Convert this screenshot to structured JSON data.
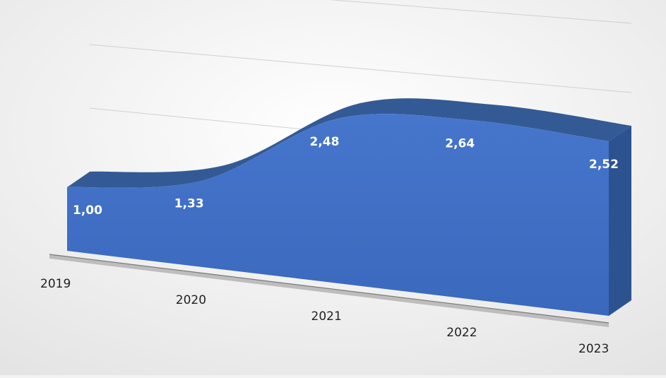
{
  "chart_data": {
    "type": "area",
    "categories": [
      "2019",
      "2020",
      "2021",
      "2022",
      "2023"
    ],
    "values": [
      1.0,
      1.33,
      2.48,
      2.64,
      2.52
    ],
    "value_labels": [
      "1,00",
      "1,33",
      "2,48",
      "2,64",
      "2,52"
    ],
    "title": "",
    "xlabel": "",
    "ylabel": "",
    "ylim": [
      0,
      3
    ],
    "grid": true,
    "legend": "none",
    "three_d": true,
    "colors": {
      "area_front": "#3e6fc7",
      "area_top": "#345a96",
      "area_side": "#2d5290",
      "floor": "#bdbdbd",
      "grid": "#d0d0d0"
    }
  }
}
